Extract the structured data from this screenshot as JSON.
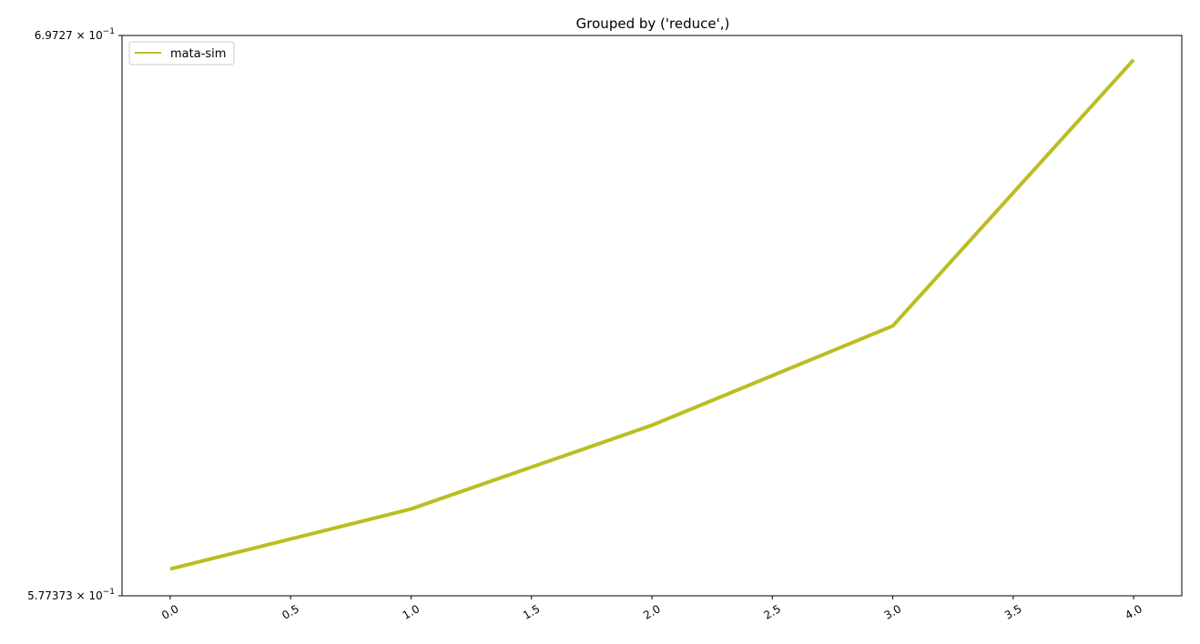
{
  "chart_data": {
    "type": "line",
    "title": "Grouped by ('reduce',)",
    "xlabel": "",
    "ylabel": "",
    "xlim": [
      -0.2,
      4.2
    ],
    "ylim": [
      0.577373,
      0.69727
    ],
    "yscale": "log",
    "x_ticks": [
      0.0,
      0.5,
      1.0,
      1.5,
      2.0,
      2.5,
      3.0,
      3.5,
      4.0
    ],
    "x_tick_labels": [
      "0.0",
      "0.5",
      "1.0",
      "1.5",
      "2.0",
      "2.5",
      "3.0",
      "3.5",
      "4.0"
    ],
    "y_ticks": [
      {
        "value": 0.69727,
        "mantissa": "6.9727",
        "exponent": "−1"
      },
      {
        "value": 0.577373,
        "mantissa": "5.77373",
        "exponent": "−1"
      }
    ],
    "grid": false,
    "legend_position": "top-left",
    "series": [
      {
        "name": "mata-sim",
        "color": "#bcbd22",
        "x": [
          0,
          1,
          2,
          3,
          4
        ],
        "y": [
          0.5826,
          0.5945,
          0.6115,
          0.6323,
          0.6916
        ]
      }
    ]
  }
}
